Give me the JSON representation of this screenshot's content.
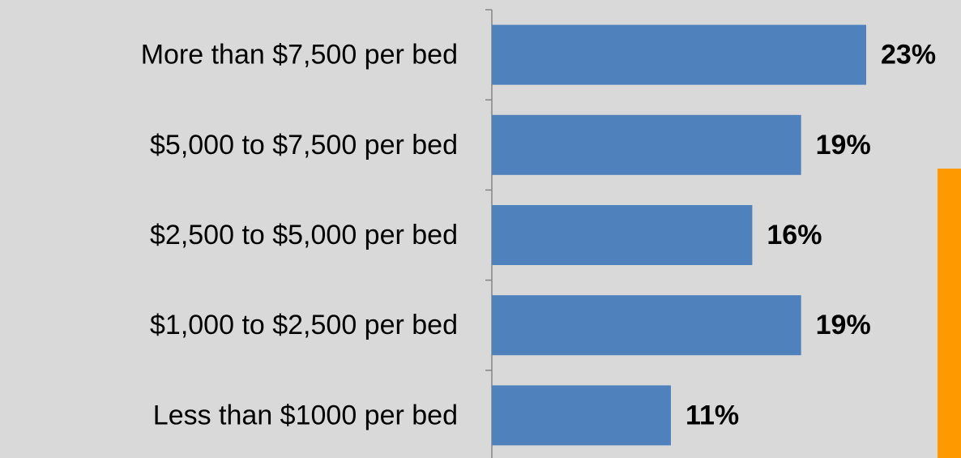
{
  "chart_data": {
    "type": "bar",
    "orientation": "horizontal",
    "categories": [
      "More than $7,500 per bed",
      "$5,000 to $7,500 per bed",
      "$2,500 to $5,000 per bed",
      "$1,000 to $2,500 per bed",
      "Less than $1000 per bed"
    ],
    "values": [
      23,
      19,
      16,
      19,
      11
    ],
    "value_labels": [
      "23%",
      "19%",
      "16%",
      "19%",
      "11%"
    ],
    "color": "#4f81bd",
    "xlim": [
      0,
      23
    ]
  }
}
